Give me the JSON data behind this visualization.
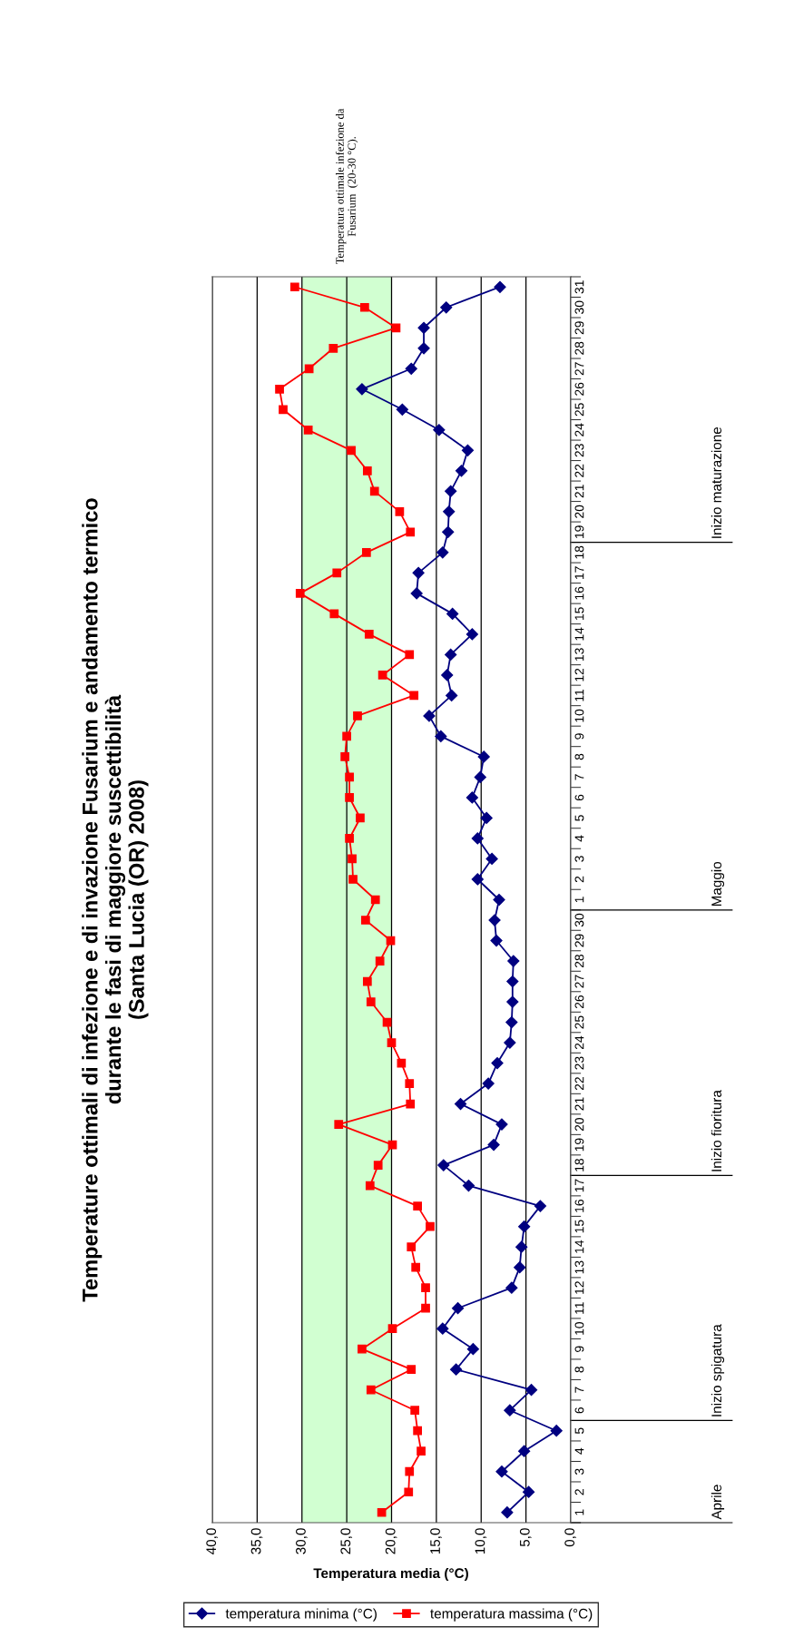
{
  "chart_data": {
    "type": "line",
    "orientation": "horizontal",
    "title": "Temperature ottimali di infezione e di invazione Fusarium e andamento termico\ndurante le fasi di maggiore suscettibilità\n(Santa Lucia (OR) 2008)",
    "xlabel": "Temperatura media (°C)",
    "categories": [
      "31",
      "30",
      "29",
      "28",
      "27",
      "26",
      "25",
      "24",
      "23",
      "22",
      "21",
      "20",
      "19",
      "18",
      "17",
      "16",
      "15",
      "14",
      "13",
      "12",
      "11",
      "10",
      "9",
      "8",
      "7",
      "6",
      "5",
      "4",
      "3",
      "2",
      "1",
      "30",
      "29",
      "28",
      "27",
      "26",
      "25",
      "24",
      "23",
      "22",
      "21",
      "20",
      "19",
      "18",
      "17",
      "16",
      "15",
      "14",
      "13",
      "12",
      "11",
      "10",
      "9",
      "8",
      "7",
      "6",
      "5",
      "4",
      "3",
      "2",
      "1"
    ],
    "series": [
      {
        "name": "temperatura minima (°C)",
        "color": "#000080",
        "marker": "diamond",
        "values": [
          7.9,
          13.9,
          16.4,
          16.4,
          17.8,
          23.3,
          18.8,
          14.7,
          11.5,
          12.2,
          13.4,
          13.6,
          13.7,
          14.3,
          17.0,
          17.2,
          13.2,
          11.0,
          13.4,
          13.8,
          13.3,
          15.8,
          14.5,
          9.7,
          10.1,
          11.0,
          9.4,
          10.4,
          8.8,
          10.4,
          8.0,
          8.5,
          8.3,
          6.4,
          6.5,
          6.5,
          6.6,
          6.8,
          8.2,
          9.2,
          12.3,
          7.7,
          8.6,
          14.2,
          11.4,
          3.4,
          5.2,
          5.5,
          5.7,
          6.6,
          12.6,
          14.3,
          10.9,
          12.8,
          4.4,
          6.8,
          1.6,
          5.2,
          7.7,
          4.7,
          7.1
        ]
      },
      {
        "name": "temperatura massima (°C)",
        "color": "#ff0000",
        "marker": "square",
        "values": [
          30.8,
          23.0,
          19.5,
          26.5,
          29.2,
          32.5,
          32.1,
          29.3,
          24.5,
          22.7,
          21.9,
          19.1,
          17.9,
          22.8,
          26.1,
          30.2,
          26.4,
          22.5,
          18.0,
          21.0,
          17.5,
          23.8,
          25.0,
          25.2,
          24.7,
          24.7,
          23.5,
          24.7,
          24.4,
          24.3,
          21.8,
          22.9,
          20.1,
          21.3,
          22.7,
          22.3,
          20.5,
          20.0,
          18.9,
          18.0,
          17.9,
          25.9,
          19.9,
          21.5,
          22.4,
          17.1,
          15.7,
          17.8,
          17.3,
          16.2,
          16.2,
          19.9,
          23.3,
          17.8,
          22.3,
          17.4,
          17.1,
          16.7,
          18.0,
          18.1,
          21.1
        ]
      }
    ],
    "xlim": [
      40,
      0
    ],
    "xticks": [
      {
        "value": 40,
        "label": "40,0"
      },
      {
        "value": 35,
        "label": "35,0"
      },
      {
        "value": 30,
        "label": "30,0"
      },
      {
        "value": 25,
        "label": "25,0"
      },
      {
        "value": 20,
        "label": "20,0"
      },
      {
        "value": 15,
        "label": "15,0"
      },
      {
        "value": 10,
        "label": "10,0"
      },
      {
        "value": 5,
        "label": "5,0"
      },
      {
        "value": 0,
        "label": "0,0"
      }
    ],
    "bands": [
      {
        "axis": "x",
        "from": 20,
        "to": 30,
        "color": "#ccffcc",
        "label": "Temperatura ottimale infezione da\nFusarium  (20-30 °C)."
      }
    ],
    "annotations": [
      "Inizio maturazione",
      "Maggio",
      "Inizio fioritura",
      "Inizio spigatura",
      "Aprile"
    ],
    "grid": "x",
    "legend": "bottom",
    "line_style": "solid"
  }
}
